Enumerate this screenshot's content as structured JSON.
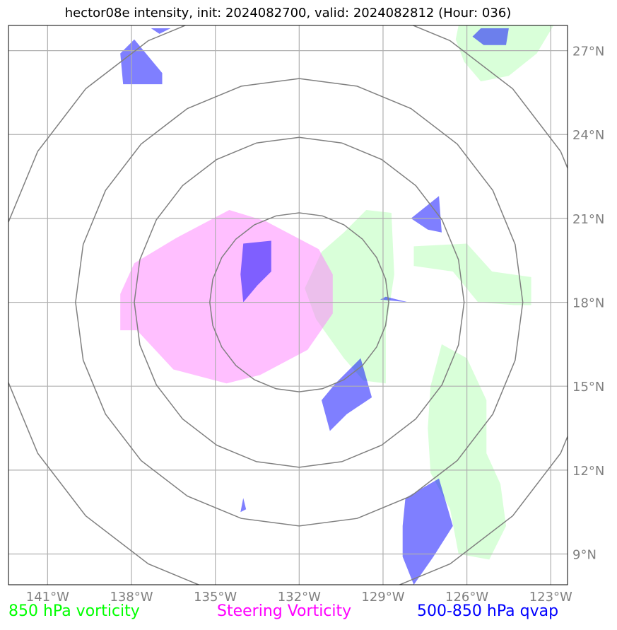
{
  "title": "hector08e intensity, init: 2024082700, valid: 2024082812 (Hour: 036)",
  "map": {
    "lon_range": [
      -142.4,
      -122.4
    ],
    "lat_range": [
      7.9,
      27.9
    ],
    "lat_ticks": [
      {
        "value": 9,
        "label": "9°N"
      },
      {
        "value": 12,
        "label": "12°N"
      },
      {
        "value": 15,
        "label": "15°N"
      },
      {
        "value": 18,
        "label": "18°N"
      },
      {
        "value": 21,
        "label": "21°N"
      },
      {
        "value": 24,
        "label": "24°N"
      },
      {
        "value": 27,
        "label": "27°N"
      }
    ],
    "lon_ticks": [
      {
        "value": -141,
        "label": "141°W"
      },
      {
        "value": -138,
        "label": "138°W"
      },
      {
        "value": -135,
        "label": "135°W"
      },
      {
        "value": -132,
        "label": "132°W"
      },
      {
        "value": -129,
        "label": "129°W"
      },
      {
        "value": -126,
        "label": "126°W"
      },
      {
        "value": -123,
        "label": "123°W"
      }
    ],
    "grid": true,
    "center": {
      "lon": -132,
      "lat": 18
    },
    "range_rings_deg": [
      3.2,
      5.9,
      8.0,
      10.8
    ],
    "colors": {
      "vorticity_850": "#b3ffb3",
      "steering_vorticity": "#ff80ff",
      "qvap_500_850": "#0000ff",
      "rings": "#808080",
      "grid": "#b0b0b0"
    },
    "shapes": {
      "vorticity_850": [
        [
          [
            -129.6,
            21.3
          ],
          [
            -128.7,
            21.2
          ],
          [
            -128.6,
            19.0
          ],
          [
            -128.9,
            17.0
          ],
          [
            -128.9,
            15.1
          ],
          [
            -129.7,
            15.2
          ],
          [
            -130.4,
            16.0
          ],
          [
            -131.4,
            17.4
          ],
          [
            -131.8,
            18.5
          ],
          [
            -131.2,
            19.8
          ],
          [
            -130.4,
            20.5
          ]
        ],
        [
          [
            -127.9,
            20.0
          ],
          [
            -126.0,
            20.1
          ],
          [
            -125.1,
            19.1
          ],
          [
            -123.7,
            18.9
          ],
          [
            -123.7,
            17.9
          ],
          [
            -124.3,
            17.9
          ],
          [
            -125.6,
            18.0
          ],
          [
            -126.5,
            19.1
          ],
          [
            -127.9,
            19.3
          ]
        ],
        [
          [
            -126.9,
            16.5
          ],
          [
            -126.0,
            16.0
          ],
          [
            -125.3,
            14.5
          ],
          [
            -125.3,
            12.6
          ],
          [
            -124.8,
            11.5
          ],
          [
            -124.6,
            10.0
          ],
          [
            -125.2,
            8.8
          ],
          [
            -126.3,
            9.0
          ],
          [
            -126.6,
            10.6
          ],
          [
            -127.3,
            11.9
          ],
          [
            -127.4,
            13.5
          ],
          [
            -127.3,
            15.0
          ]
        ],
        [
          [
            -126.3,
            27.9
          ],
          [
            -122.9,
            27.9
          ],
          [
            -123.5,
            26.9
          ],
          [
            -124.5,
            26.1
          ],
          [
            -125.5,
            25.9
          ],
          [
            -126.1,
            26.6
          ],
          [
            -126.4,
            27.4
          ]
        ]
      ],
      "steering_vorticity": [
        [
          [
            -137.9,
            19.4
          ],
          [
            -136.4,
            20.3
          ],
          [
            -134.5,
            21.3
          ],
          [
            -133.2,
            20.9
          ],
          [
            -131.3,
            19.9
          ],
          [
            -130.8,
            19.0
          ],
          [
            -130.8,
            17.6
          ],
          [
            -131.7,
            16.3
          ],
          [
            -133.4,
            15.4
          ],
          [
            -134.6,
            15.1
          ],
          [
            -136.5,
            15.6
          ],
          [
            -137.8,
            17.0
          ],
          [
            -138.4,
            17.0
          ],
          [
            -138.4,
            18.3
          ]
        ]
      ],
      "qvap_500_850": [
        [
          [
            -134.0,
            20.1
          ],
          [
            -133.0,
            20.2
          ],
          [
            -133.0,
            19.1
          ],
          [
            -133.5,
            18.6
          ],
          [
            -134.0,
            18.0
          ],
          [
            -134.1,
            19.0
          ]
        ],
        [
          [
            -138.4,
            26.9
          ],
          [
            -137.9,
            27.4
          ],
          [
            -136.9,
            26.2
          ],
          [
            -136.9,
            25.8
          ],
          [
            -138.3,
            25.8
          ]
        ],
        [
          [
            -137.3,
            27.8
          ],
          [
            -136.6,
            27.8
          ],
          [
            -137.0,
            27.6
          ]
        ],
        [
          [
            -125.5,
            27.8
          ],
          [
            -124.5,
            27.8
          ],
          [
            -124.6,
            27.2
          ],
          [
            -125.4,
            27.2
          ],
          [
            -125.8,
            27.5
          ]
        ],
        [
          [
            -128.0,
            21.0
          ],
          [
            -127.0,
            21.8
          ],
          [
            -126.9,
            20.5
          ],
          [
            -127.4,
            20.6
          ]
        ],
        [
          [
            -129.1,
            18.1
          ],
          [
            -128.1,
            18.0
          ],
          [
            -128.9,
            18.2
          ]
        ],
        [
          [
            -130.7,
            15.1
          ],
          [
            -129.8,
            16.0
          ],
          [
            -129.4,
            14.6
          ],
          [
            -130.3,
            14.0
          ],
          [
            -130.9,
            13.4
          ],
          [
            -131.2,
            14.5
          ]
        ],
        [
          [
            -128.2,
            11.0
          ],
          [
            -127.0,
            11.7
          ],
          [
            -126.5,
            10.0
          ],
          [
            -127.2,
            8.9
          ],
          [
            -127.9,
            7.9
          ],
          [
            -128.3,
            8.9
          ],
          [
            -128.3,
            10.0
          ]
        ],
        [
          [
            -123.8,
            22.1
          ],
          [
            -123.7,
            22.0
          ]
        ],
        [
          [
            -134.0,
            11.0
          ],
          [
            -133.9,
            10.6
          ],
          [
            -134.1,
            10.5
          ]
        ]
      ]
    }
  },
  "legend": {
    "vorticity_850": "850 hPa vorticity",
    "steering_vorticity": "Steering Vorticity",
    "qvap_500_850": "500-850 hPa qvap"
  }
}
